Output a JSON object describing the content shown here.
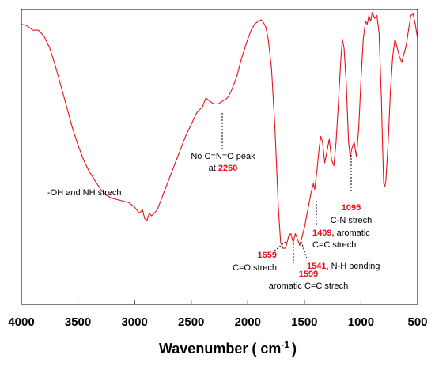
{
  "chart_data": {
    "type": "line",
    "xlabel_main": "Wavenumber ( cm",
    "xlabel_sup": "-1",
    "xlabel_end": ")",
    "xlim": [
      4000,
      500
    ],
    "ylim": [
      0,
      1
    ],
    "xticks": [
      "4000",
      "3500",
      "3000",
      "2500",
      "2000",
      "1500",
      "1000",
      "500"
    ],
    "xtick_values": [
      4000,
      3500,
      3000,
      2500,
      2000,
      1500,
      1000,
      500
    ],
    "line_color": "#e8111b",
    "series": [
      {
        "x": [
          4000,
          3950,
          3900,
          3850,
          3800,
          3750,
          3700,
          3650,
          3600,
          3550,
          3500,
          3450,
          3400,
          3350,
          3300,
          3250,
          3200,
          3150,
          3100,
          3050,
          3000,
          2960,
          2930,
          2910,
          2890,
          2870,
          2850,
          2800,
          2750,
          2700,
          2650,
          2600,
          2550,
          2500,
          2450,
          2400,
          2370,
          2340,
          2300,
          2260,
          2220,
          2180,
          2150,
          2100,
          2050,
          2000,
          1970,
          1940,
          1910,
          1880,
          1860,
          1840,
          1820,
          1790,
          1760,
          1730,
          1710,
          1690,
          1670,
          1659,
          1640,
          1620,
          1599,
          1580,
          1560,
          1541,
          1520,
          1500,
          1480,
          1460,
          1440,
          1420,
          1409,
          1390,
          1370,
          1355,
          1340,
          1320,
          1300,
          1280,
          1260,
          1240,
          1220,
          1200,
          1180,
          1165,
          1150,
          1130,
          1110,
          1095,
          1080,
          1060,
          1040,
          1020,
          1000,
          980,
          960,
          945,
          930,
          915,
          900,
          880,
          860,
          840,
          820,
          810,
          800,
          790,
          780,
          760,
          740,
          720,
          700,
          680,
          660,
          640,
          620,
          600,
          580,
          560,
          540,
          520,
          500
        ],
        "y": [
          0.95,
          0.945,
          0.93,
          0.93,
          0.91,
          0.87,
          0.81,
          0.74,
          0.67,
          0.6,
          0.54,
          0.49,
          0.45,
          0.42,
          0.39,
          0.37,
          0.36,
          0.355,
          0.35,
          0.345,
          0.33,
          0.31,
          0.32,
          0.29,
          0.285,
          0.31,
          0.3,
          0.32,
          0.37,
          0.42,
          0.47,
          0.52,
          0.57,
          0.61,
          0.65,
          0.67,
          0.7,
          0.69,
          0.68,
          0.68,
          0.69,
          0.7,
          0.72,
          0.77,
          0.84,
          0.9,
          0.93,
          0.95,
          0.96,
          0.965,
          0.955,
          0.94,
          0.9,
          0.8,
          0.6,
          0.33,
          0.21,
          0.19,
          0.19,
          0.2,
          0.23,
          0.24,
          0.21,
          0.24,
          0.22,
          0.2,
          0.23,
          0.26,
          0.3,
          0.34,
          0.38,
          0.41,
          0.39,
          0.45,
          0.53,
          0.57,
          0.55,
          0.48,
          0.52,
          0.56,
          0.49,
          0.47,
          0.55,
          0.68,
          0.82,
          0.9,
          0.87,
          0.75,
          0.55,
          0.5,
          0.53,
          0.55,
          0.5,
          0.6,
          0.76,
          0.9,
          0.96,
          0.95,
          0.98,
          0.96,
          0.99,
          0.97,
          0.98,
          0.92,
          0.7,
          0.55,
          0.41,
          0.4,
          0.42,
          0.55,
          0.72,
          0.84,
          0.9,
          0.87,
          0.84,
          0.82,
          0.85,
          0.88,
          0.93,
          0.98,
          0.985,
          0.95,
          0.9
        ]
      }
    ],
    "annotations": [
      {
        "id": "ohnh",
        "lines": [
          {
            "text": "-OH and NH strech",
            "red": false
          }
        ]
      },
      {
        "id": "cno",
        "lines": [
          {
            "text": "No C=N=O peak",
            "red": false
          },
          {
            "text_pre": "at ",
            "text_red": "2260"
          }
        ]
      },
      {
        "id": "cn",
        "lines": [
          {
            "text": "1095",
            "red": true
          },
          {
            "text": "C-N strech",
            "red": false
          }
        ]
      },
      {
        "id": "c1409",
        "lines": [
          {
            "text_red": "1409,",
            "text_post": " aromatic"
          },
          {
            "text": "C=C strech",
            "red": false
          }
        ]
      },
      {
        "id": "c1659",
        "lines": [
          {
            "text": "1659",
            "red": true
          },
          {
            "text": "C=O strech",
            "red": false
          }
        ]
      },
      {
        "id": "c1541",
        "lines": [
          {
            "text_red": "1541",
            "text_post": ", N-H bending"
          }
        ]
      },
      {
        "id": "c1599",
        "lines": [
          {
            "text": "1599",
            "red": true
          },
          {
            "text": "aromatic C=C strech",
            "red": false
          }
        ]
      }
    ]
  }
}
